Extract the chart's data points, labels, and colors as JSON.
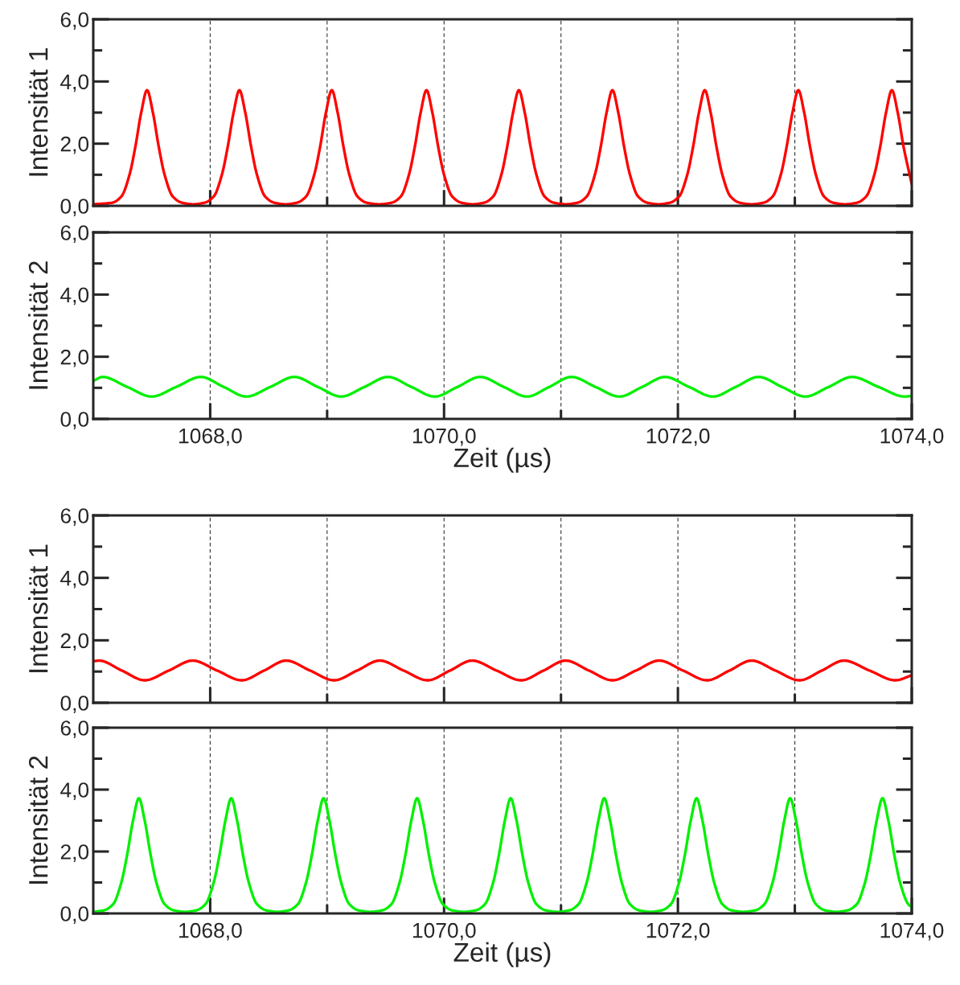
{
  "chart_data": [
    {
      "type": "line",
      "ylabel": "Intensität 1",
      "xlim": [
        1067,
        1074
      ],
      "ylim": [
        0,
        6
      ],
      "grid": "x",
      "tick_labels": "y",
      "yticks": [
        {
          "value": 0,
          "label": "0,0"
        },
        {
          "value": 1,
          "label": null
        },
        {
          "value": 2,
          "label": "2,0"
        },
        {
          "value": 3,
          "label": null
        },
        {
          "value": 4,
          "label": "4,0"
        },
        {
          "value": 5,
          "label": null
        },
        {
          "value": 6,
          "label": "6,0"
        }
      ],
      "series": [
        {
          "color": "#ff0000",
          "x": [
            1067.0,
            1067.16,
            1067.24,
            1067.31,
            1067.36,
            1067.41,
            1067.46,
            1067.51,
            1067.56,
            1067.61,
            1067.68,
            1067.76,
            1067.855,
            1067.95,
            1068.03,
            1068.1,
            1068.15,
            1068.2,
            1068.25,
            1068.3,
            1068.35,
            1068.4,
            1068.47,
            1068.55,
            1068.645,
            1068.74,
            1068.82,
            1068.89,
            1068.94,
            1068.99,
            1069.04,
            1069.09,
            1069.14,
            1069.19,
            1069.26,
            1069.34,
            1069.445,
            1069.55,
            1069.63,
            1069.7,
            1069.75,
            1069.8,
            1069.85,
            1069.9,
            1069.95,
            1070.0,
            1070.07,
            1070.15,
            1070.245,
            1070.34,
            1070.42,
            1070.49,
            1070.54,
            1070.59,
            1070.64,
            1070.69,
            1070.74,
            1070.79,
            1070.86,
            1070.94,
            1071.04,
            1071.14,
            1071.22,
            1071.29,
            1071.34,
            1071.39,
            1071.44,
            1071.49,
            1071.54,
            1071.59,
            1071.66,
            1071.74,
            1071.835,
            1071.93,
            1072.01,
            1072.08,
            1072.13,
            1072.18,
            1072.23,
            1072.28,
            1072.33,
            1072.38,
            1072.45,
            1072.53,
            1072.63,
            1072.73,
            1072.81,
            1072.88,
            1072.93,
            1072.98,
            1073.03,
            1073.08,
            1073.13,
            1073.18,
            1073.25,
            1073.33,
            1073.43,
            1073.53,
            1073.61,
            1073.68,
            1073.73,
            1073.78,
            1073.83,
            1073.88,
            1073.93,
            1074.0
          ],
          "values": [
            0.05,
            0.1,
            0.3,
            1.0,
            1.9,
            3.0,
            3.72,
            3.0,
            1.9,
            1.0,
            0.3,
            0.1,
            0.05,
            0.1,
            0.3,
            1.0,
            1.9,
            3.0,
            3.72,
            3.0,
            1.9,
            1.0,
            0.3,
            0.1,
            0.05,
            0.1,
            0.3,
            1.0,
            1.9,
            3.0,
            3.72,
            3.0,
            1.9,
            1.0,
            0.3,
            0.1,
            0.05,
            0.1,
            0.3,
            1.0,
            1.9,
            3.0,
            3.72,
            3.0,
            1.9,
            1.0,
            0.3,
            0.1,
            0.05,
            0.1,
            0.3,
            1.0,
            1.9,
            3.0,
            3.72,
            3.0,
            1.9,
            1.0,
            0.3,
            0.1,
            0.05,
            0.1,
            0.3,
            1.0,
            1.9,
            3.0,
            3.72,
            3.0,
            1.9,
            1.0,
            0.3,
            0.1,
            0.05,
            0.1,
            0.3,
            1.0,
            1.9,
            3.0,
            3.72,
            3.0,
            1.9,
            1.0,
            0.3,
            0.1,
            0.05,
            0.1,
            0.3,
            1.0,
            1.9,
            3.0,
            3.72,
            3.0,
            1.9,
            1.0,
            0.3,
            0.1,
            0.05,
            0.1,
            0.3,
            1.0,
            1.9,
            3.0,
            3.72,
            3.0,
            1.9,
            0.7
          ]
        }
      ]
    },
    {
      "type": "line",
      "ylabel": "Intensität 2",
      "xlabel": "Zeit (µs)",
      "xlim": [
        1067,
        1074
      ],
      "ylim": [
        0,
        6
      ],
      "grid": "x",
      "xticks": [
        {
          "value": 1068,
          "label": "1068,0"
        },
        {
          "value": 1069,
          "label": null
        },
        {
          "value": 1070,
          "label": "1070,0"
        },
        {
          "value": 1071,
          "label": null
        },
        {
          "value": 1072,
          "label": "1072,0"
        },
        {
          "value": 1073,
          "label": null
        },
        {
          "value": 1074,
          "label": "1074,0"
        }
      ],
      "yticks": [
        {
          "value": 0,
          "label": "0,0"
        },
        {
          "value": 1,
          "label": null
        },
        {
          "value": 2,
          "label": "2,0"
        },
        {
          "value": 3,
          "label": null
        },
        {
          "value": 4,
          "label": "4,0"
        },
        {
          "value": 5,
          "label": null
        },
        {
          "value": 6,
          "label": "6,0"
        }
      ],
      "series": [
        {
          "color": "#00f000",
          "x": [
            1067.0,
            1067.08,
            1067.29,
            1067.5,
            1067.71,
            1067.92,
            1068.115,
            1068.31,
            1068.515,
            1068.72,
            1068.92,
            1069.12,
            1069.32,
            1069.52,
            1069.72,
            1069.92,
            1070.115,
            1070.31,
            1070.51,
            1070.71,
            1070.9,
            1071.09,
            1071.295,
            1071.5,
            1071.695,
            1071.89,
            1072.095,
            1072.3,
            1072.495,
            1072.69,
            1072.89,
            1073.09,
            1073.29,
            1073.49,
            1073.715,
            1073.94,
            1074.0
          ],
          "values": [
            1.22,
            1.35,
            1.03,
            0.72,
            1.03,
            1.35,
            1.03,
            0.72,
            1.03,
            1.35,
            1.03,
            0.72,
            1.03,
            1.35,
            1.03,
            0.72,
            1.03,
            1.35,
            1.03,
            0.72,
            1.03,
            1.35,
            1.03,
            0.72,
            1.03,
            1.35,
            1.03,
            0.72,
            1.03,
            1.35,
            1.03,
            0.72,
            1.03,
            1.35,
            1.03,
            0.72,
            0.74
          ]
        }
      ]
    },
    {
      "type": "line",
      "ylabel": "Intensität 1",
      "xlim": [
        1067,
        1074
      ],
      "ylim": [
        0,
        6
      ],
      "grid": "x",
      "tick_labels": "y",
      "yticks": [
        {
          "value": 0,
          "label": "0,0"
        },
        {
          "value": 1,
          "label": null
        },
        {
          "value": 2,
          "label": "2,0"
        },
        {
          "value": 3,
          "label": null
        },
        {
          "value": 4,
          "label": "4,0"
        },
        {
          "value": 5,
          "label": null
        },
        {
          "value": 6,
          "label": "6,0"
        }
      ],
      "series": [
        {
          "color": "#ff0000",
          "x": [
            1067.0,
            1067.05,
            1067.245,
            1067.44,
            1067.645,
            1067.85,
            1068.06,
            1068.27,
            1068.46,
            1068.65,
            1068.855,
            1069.06,
            1069.255,
            1069.45,
            1069.655,
            1069.86,
            1070.05,
            1070.24,
            1070.45,
            1070.66,
            1070.85,
            1071.04,
            1071.24,
            1071.44,
            1071.64,
            1071.84,
            1072.045,
            1072.25,
            1072.44,
            1072.63,
            1072.835,
            1073.04,
            1073.23,
            1073.42,
            1073.64,
            1073.86,
            1074.0
          ],
          "values": [
            1.33,
            1.35,
            1.03,
            0.72,
            1.03,
            1.35,
            1.03,
            0.72,
            1.03,
            1.35,
            1.03,
            0.72,
            1.03,
            1.35,
            1.03,
            0.72,
            1.03,
            1.35,
            1.03,
            0.72,
            1.03,
            1.35,
            1.03,
            0.72,
            1.03,
            1.35,
            1.03,
            0.72,
            1.03,
            1.35,
            1.03,
            0.72,
            1.03,
            1.35,
            1.03,
            0.72,
            0.88
          ]
        }
      ]
    },
    {
      "type": "line",
      "ylabel": "Intensität 2",
      "xlabel": "Zeit (µs)",
      "xlim": [
        1067,
        1074
      ],
      "ylim": [
        0,
        6
      ],
      "grid": "x",
      "xticks": [
        {
          "value": 1068,
          "label": "1068,0"
        },
        {
          "value": 1069,
          "label": null
        },
        {
          "value": 1070,
          "label": "1070,0"
        },
        {
          "value": 1071,
          "label": null
        },
        {
          "value": 1072,
          "label": "1072,0"
        },
        {
          "value": 1073,
          "label": null
        },
        {
          "value": 1074,
          "label": "1074,0"
        }
      ],
      "yticks": [
        {
          "value": 0,
          "label": "0,0"
        },
        {
          "value": 1,
          "label": null
        },
        {
          "value": 2,
          "label": "2,0"
        },
        {
          "value": 3,
          "label": null
        },
        {
          "value": 4,
          "label": "4,0"
        },
        {
          "value": 5,
          "label": null
        },
        {
          "value": 6,
          "label": "6,0"
        }
      ],
      "series": [
        {
          "color": "#00f000",
          "x": [
            1067.0,
            1067.09,
            1067.17,
            1067.24,
            1067.29,
            1067.34,
            1067.39,
            1067.44,
            1067.49,
            1067.54,
            1067.61,
            1067.69,
            1067.785,
            1067.88,
            1067.96,
            1068.03,
            1068.08,
            1068.13,
            1068.18,
            1068.23,
            1068.28,
            1068.33,
            1068.4,
            1068.48,
            1068.575,
            1068.67,
            1068.75,
            1068.82,
            1068.87,
            1068.92,
            1068.97,
            1069.02,
            1069.07,
            1069.12,
            1069.19,
            1069.27,
            1069.37,
            1069.47,
            1069.55,
            1069.62,
            1069.67,
            1069.72,
            1069.77,
            1069.82,
            1069.87,
            1069.92,
            1069.99,
            1070.07,
            1070.17,
            1070.27,
            1070.35,
            1070.42,
            1070.47,
            1070.52,
            1070.57,
            1070.62,
            1070.67,
            1070.72,
            1070.79,
            1070.87,
            1070.97,
            1071.07,
            1071.15,
            1071.22,
            1071.27,
            1071.32,
            1071.37,
            1071.42,
            1071.47,
            1071.52,
            1071.59,
            1071.67,
            1071.765,
            1071.86,
            1071.94,
            1072.01,
            1072.06,
            1072.11,
            1072.16,
            1072.21,
            1072.26,
            1072.31,
            1072.38,
            1072.46,
            1072.56,
            1072.66,
            1072.74,
            1072.81,
            1072.86,
            1072.91,
            1072.96,
            1073.01,
            1073.06,
            1073.11,
            1073.18,
            1073.26,
            1073.355,
            1073.45,
            1073.53,
            1073.6,
            1073.65,
            1073.7,
            1073.75,
            1073.8,
            1073.85,
            1073.9,
            1073.97,
            1074.0
          ],
          "values": [
            0.05,
            0.1,
            0.3,
            1.0,
            1.9,
            3.0,
            3.72,
            3.0,
            1.9,
            1.0,
            0.3,
            0.1,
            0.05,
            0.1,
            0.3,
            1.0,
            1.9,
            3.0,
            3.72,
            3.0,
            1.9,
            1.0,
            0.3,
            0.1,
            0.05,
            0.1,
            0.3,
            1.0,
            1.9,
            3.0,
            3.72,
            3.0,
            1.9,
            1.0,
            0.3,
            0.1,
            0.05,
            0.1,
            0.3,
            1.0,
            1.9,
            3.0,
            3.72,
            3.0,
            1.9,
            1.0,
            0.3,
            0.1,
            0.05,
            0.1,
            0.3,
            1.0,
            1.9,
            3.0,
            3.72,
            3.0,
            1.9,
            1.0,
            0.3,
            0.1,
            0.05,
            0.1,
            0.3,
            1.0,
            1.9,
            3.0,
            3.72,
            3.0,
            1.9,
            1.0,
            0.3,
            0.1,
            0.05,
            0.1,
            0.3,
            1.0,
            1.9,
            3.0,
            3.72,
            3.0,
            1.9,
            1.0,
            0.3,
            0.1,
            0.05,
            0.1,
            0.3,
            1.0,
            1.9,
            3.0,
            3.72,
            3.0,
            1.9,
            1.0,
            0.3,
            0.1,
            0.05,
            0.1,
            0.3,
            1.0,
            1.9,
            3.0,
            3.72,
            3.0,
            1.9,
            1.0,
            0.3,
            0.2
          ]
        }
      ]
    }
  ]
}
